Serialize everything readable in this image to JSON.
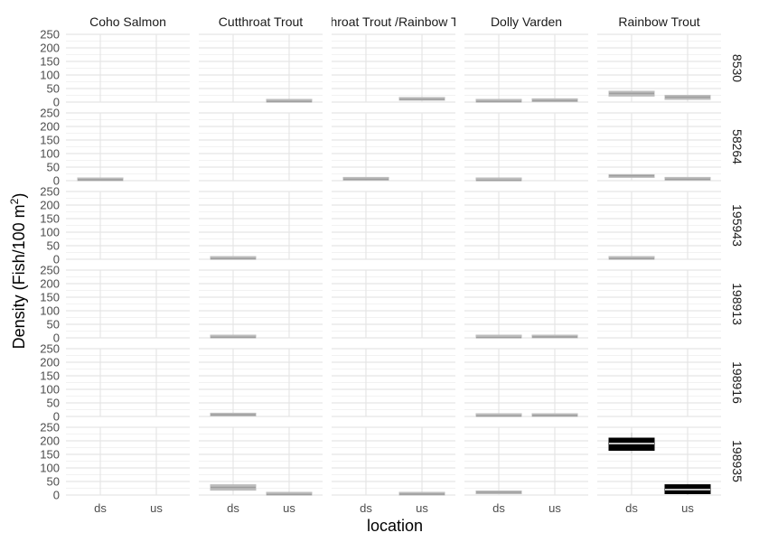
{
  "chart_data": {
    "type": "boxplot",
    "xlabel": "location",
    "ylabel": "Density (Fish/100 m",
    "ylabel_sup": "2",
    "ylabel_close": ")",
    "categories": [
      "ds",
      "us"
    ],
    "yticks": [
      "0",
      "50",
      "100",
      "150",
      "200",
      "250"
    ],
    "ylim": [
      0,
      250
    ],
    "species": [
      "Coho Salmon",
      "Cutthroat Trout",
      "Cutthroat Trout /Rainbow Trout",
      "Dolly Varden",
      "Rainbow Trout"
    ],
    "sites": [
      "8530",
      "58264",
      "195943",
      "198913",
      "198916",
      "198935"
    ],
    "box_color": "#bdbdbd",
    "highlight_color": "#000000",
    "boxes": [
      {
        "site": "8530",
        "species": "Cutthroat Trout",
        "location": "us",
        "q1": 0,
        "median": 2,
        "q3": 5,
        "min": 0,
        "max": 6
      },
      {
        "site": "8530",
        "species": "Cutthroat Trout /Rainbow Trout",
        "location": "us",
        "q1": 7,
        "median": 10,
        "q3": 14,
        "min": 6,
        "max": 15
      },
      {
        "site": "8530",
        "species": "Dolly Varden",
        "location": "ds",
        "q1": 0,
        "median": 2,
        "q3": 5,
        "min": 0,
        "max": 6
      },
      {
        "site": "8530",
        "species": "Dolly Varden",
        "location": "us",
        "q1": 2,
        "median": 5,
        "q3": 8,
        "min": 1,
        "max": 9
      },
      {
        "site": "8530",
        "species": "Rainbow Trout",
        "location": "ds",
        "q1": 22,
        "median": 32,
        "q3": 40,
        "min": 20,
        "max": 42
      },
      {
        "site": "8530",
        "species": "Rainbow Trout",
        "location": "us",
        "q1": 10,
        "median": 18,
        "q3": 25,
        "min": 8,
        "max": 26
      },
      {
        "site": "58264",
        "species": "Coho Salmon",
        "location": "ds",
        "q1": 0,
        "median": 3,
        "q3": 6,
        "min": 0,
        "max": 7
      },
      {
        "site": "58264",
        "species": "Cutthroat Trout /Rainbow Trout",
        "location": "ds",
        "q1": 2,
        "median": 5,
        "q3": 8,
        "min": 1,
        "max": 9
      },
      {
        "site": "58264",
        "species": "Dolly Varden",
        "location": "ds",
        "q1": 0,
        "median": 1,
        "q3": 4,
        "min": 0,
        "max": 5
      },
      {
        "site": "58264",
        "species": "Rainbow Trout",
        "location": "ds",
        "q1": 12,
        "median": 18,
        "q3": 22,
        "min": 11,
        "max": 23
      },
      {
        "site": "58264",
        "species": "Rainbow Trout",
        "location": "us",
        "q1": 2,
        "median": 5,
        "q3": 9,
        "min": 1,
        "max": 10
      },
      {
        "site": "195943",
        "species": "Cutthroat Trout",
        "location": "ds",
        "q1": 0,
        "median": 2,
        "q3": 4,
        "min": 0,
        "max": 5
      },
      {
        "site": "195943",
        "species": "Rainbow Trout",
        "location": "ds",
        "q1": 0,
        "median": 2,
        "q3": 4,
        "min": 0,
        "max": 5
      },
      {
        "site": "198913",
        "species": "Cutthroat Trout",
        "location": "ds",
        "q1": 0,
        "median": 2,
        "q3": 5,
        "min": 0,
        "max": 6
      },
      {
        "site": "198913",
        "species": "Dolly Varden",
        "location": "ds",
        "q1": 0,
        "median": 1,
        "q3": 5,
        "min": 0,
        "max": 6
      },
      {
        "site": "198913",
        "species": "Dolly Varden",
        "location": "us",
        "q1": 0,
        "median": 3,
        "q3": 7,
        "min": 0,
        "max": 8
      },
      {
        "site": "198916",
        "species": "Cutthroat Trout",
        "location": "ds",
        "q1": 2,
        "median": 6,
        "q3": 12,
        "min": 0,
        "max": 14
      },
      {
        "site": "198916",
        "species": "Dolly Varden",
        "location": "ds",
        "q1": 0,
        "median": 2,
        "q3": 6,
        "min": 0,
        "max": 7
      },
      {
        "site": "198916",
        "species": "Dolly Varden",
        "location": "us",
        "q1": 0,
        "median": 3,
        "q3": 7,
        "min": 0,
        "max": 8
      },
      {
        "site": "198935",
        "species": "Cutthroat Trout",
        "location": "ds",
        "q1": 18,
        "median": 28,
        "q3": 38,
        "min": 16,
        "max": 40
      },
      {
        "site": "198935",
        "species": "Cutthroat Trout",
        "location": "us",
        "q1": 0,
        "median": 2,
        "q3": 6,
        "min": 0,
        "max": 7
      },
      {
        "site": "198935",
        "species": "Cutthroat Trout /Rainbow Trout",
        "location": "us",
        "q1": 0,
        "median": 3,
        "q3": 7,
        "min": 0,
        "max": 8
      },
      {
        "site": "198935",
        "species": "Dolly Varden",
        "location": "ds",
        "q1": 5,
        "median": 10,
        "q3": 15,
        "min": 4,
        "max": 16
      },
      {
        "site": "198935",
        "species": "Rainbow Trout",
        "location": "ds",
        "q1": 165,
        "median": 190,
        "q3": 210,
        "min": 155,
        "max": 230,
        "highlight": true
      },
      {
        "site": "198935",
        "species": "Rainbow Trout",
        "location": "us",
        "q1": 5,
        "median": 20,
        "q3": 38,
        "min": 0,
        "max": 42,
        "highlight": true
      }
    ]
  }
}
